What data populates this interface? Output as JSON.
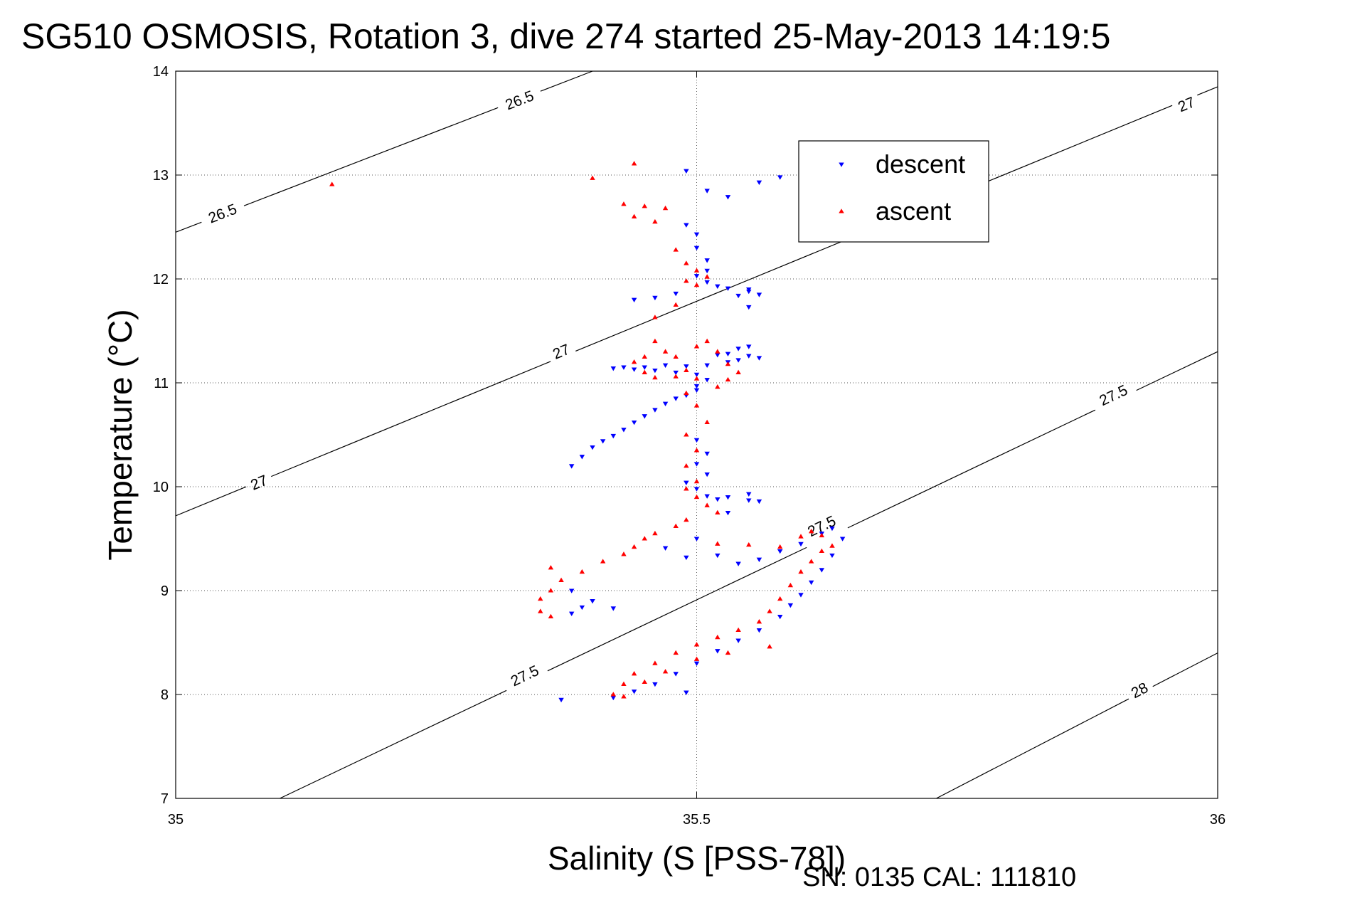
{
  "chart_data": {
    "type": "scatter",
    "title": "SG510 OSMOSIS, Rotation 3, dive 274 started 25-May-2013 14:19:5",
    "xlabel": "Salinity (S [PSS-78])",
    "ylabel": "Temperature (°C)",
    "footer": "SN: 0135  CAL: 111810",
    "xlim": [
      35,
      36
    ],
    "ylim": [
      7,
      14
    ],
    "x_ticks": [
      "35",
      "35.5",
      "36"
    ],
    "y_ticks": [
      "7",
      "8",
      "9",
      "10",
      "11",
      "12",
      "13",
      "14"
    ],
    "grid": true,
    "legend_position": "top-right",
    "series": [
      {
        "name": "descent",
        "color": "#0000ff",
        "marker": "triangle-down",
        "points": [
          [
            35.49,
            13.04
          ],
          [
            35.51,
            12.85
          ],
          [
            35.53,
            12.79
          ],
          [
            35.56,
            12.93
          ],
          [
            35.58,
            12.98
          ],
          [
            35.49,
            12.52
          ],
          [
            35.5,
            12.43
          ],
          [
            35.5,
            12.3
          ],
          [
            35.51,
            12.18
          ],
          [
            35.51,
            12.08
          ],
          [
            35.5,
            12.03
          ],
          [
            35.51,
            11.97
          ],
          [
            35.52,
            11.93
          ],
          [
            35.53,
            11.91
          ],
          [
            35.55,
            11.88
          ],
          [
            35.54,
            11.84
          ],
          [
            35.56,
            11.85
          ],
          [
            35.55,
            11.73
          ],
          [
            35.48,
            11.86
          ],
          [
            35.46,
            11.82
          ],
          [
            35.44,
            11.8
          ],
          [
            35.55,
            11.35
          ],
          [
            35.54,
            11.33
          ],
          [
            35.53,
            11.28
          ],
          [
            35.52,
            11.27
          ],
          [
            35.54,
            11.22
          ],
          [
            35.55,
            11.26
          ],
          [
            35.56,
            11.24
          ],
          [
            35.53,
            11.2
          ],
          [
            35.51,
            11.17
          ],
          [
            35.49,
            11.16
          ],
          [
            35.47,
            11.17
          ],
          [
            35.45,
            11.15
          ],
          [
            35.43,
            11.15
          ],
          [
            35.42,
            11.14
          ],
          [
            35.44,
            11.13
          ],
          [
            35.46,
            11.12
          ],
          [
            35.48,
            11.1
          ],
          [
            35.5,
            11.08
          ],
          [
            35.51,
            11.03
          ],
          [
            35.5,
            10.97
          ],
          [
            35.5,
            10.93
          ],
          [
            35.49,
            10.88
          ],
          [
            35.48,
            10.85
          ],
          [
            35.47,
            10.8
          ],
          [
            35.46,
            10.74
          ],
          [
            35.45,
            10.68
          ],
          [
            35.44,
            10.62
          ],
          [
            35.43,
            10.55
          ],
          [
            35.42,
            10.49
          ],
          [
            35.41,
            10.44
          ],
          [
            35.4,
            10.38
          ],
          [
            35.39,
            10.29
          ],
          [
            35.38,
            10.2
          ],
          [
            35.5,
            10.45
          ],
          [
            35.51,
            10.32
          ],
          [
            35.5,
            10.22
          ],
          [
            35.51,
            10.12
          ],
          [
            35.49,
            10.04
          ],
          [
            35.5,
            9.98
          ],
          [
            35.51,
            9.91
          ],
          [
            35.52,
            9.88
          ],
          [
            35.53,
            9.9
          ],
          [
            35.55,
            9.87
          ],
          [
            35.56,
            9.86
          ],
          [
            35.55,
            9.93
          ],
          [
            35.47,
            9.41
          ],
          [
            35.49,
            9.32
          ],
          [
            35.52,
            9.34
          ],
          [
            35.54,
            9.26
          ],
          [
            35.56,
            9.3
          ],
          [
            35.58,
            9.38
          ],
          [
            35.6,
            9.45
          ],
          [
            35.62,
            9.55
          ],
          [
            35.63,
            9.6
          ],
          [
            35.64,
            9.5
          ],
          [
            35.63,
            9.34
          ],
          [
            35.62,
            9.2
          ],
          [
            35.61,
            9.08
          ],
          [
            35.6,
            8.96
          ],
          [
            35.59,
            8.86
          ],
          [
            35.58,
            8.75
          ],
          [
            35.56,
            8.62
          ],
          [
            35.54,
            8.52
          ],
          [
            35.52,
            8.42
          ],
          [
            35.5,
            8.3
          ],
          [
            35.48,
            8.2
          ],
          [
            35.46,
            8.1
          ],
          [
            35.44,
            8.03
          ],
          [
            35.42,
            7.97
          ],
          [
            35.49,
            8.02
          ],
          [
            35.38,
            8.78
          ],
          [
            35.39,
            8.84
          ],
          [
            35.4,
            8.9
          ],
          [
            35.42,
            8.83
          ],
          [
            35.38,
            9.0
          ],
          [
            35.37,
            7.95
          ],
          [
            35.5,
            9.5
          ],
          [
            35.53,
            9.75
          ],
          [
            35.55,
            11.9
          ]
        ]
      },
      {
        "name": "ascent",
        "color": "#ff0000",
        "marker": "triangle-up",
        "points": [
          [
            35.15,
            12.91
          ],
          [
            35.4,
            12.97
          ],
          [
            35.44,
            13.11
          ],
          [
            35.43,
            12.72
          ],
          [
            35.45,
            12.7
          ],
          [
            35.47,
            12.68
          ],
          [
            35.44,
            12.6
          ],
          [
            35.46,
            12.55
          ],
          [
            35.48,
            12.28
          ],
          [
            35.49,
            12.15
          ],
          [
            35.5,
            12.08
          ],
          [
            35.51,
            12.02
          ],
          [
            35.49,
            11.98
          ],
          [
            35.5,
            11.94
          ],
          [
            35.48,
            11.75
          ],
          [
            35.46,
            11.63
          ],
          [
            35.46,
            11.4
          ],
          [
            35.47,
            11.3
          ],
          [
            35.48,
            11.25
          ],
          [
            35.5,
            11.35
          ],
          [
            35.51,
            11.4
          ],
          [
            35.52,
            11.3
          ],
          [
            35.53,
            11.18
          ],
          [
            35.54,
            11.1
          ],
          [
            35.53,
            11.03
          ],
          [
            35.52,
            10.96
          ],
          [
            35.45,
            11.25
          ],
          [
            35.44,
            11.2
          ],
          [
            35.45,
            11.1
          ],
          [
            35.46,
            11.05
          ],
          [
            35.48,
            11.06
          ],
          [
            35.49,
            11.12
          ],
          [
            35.5,
            11.04
          ],
          [
            35.49,
            10.9
          ],
          [
            35.5,
            10.78
          ],
          [
            35.51,
            10.62
          ],
          [
            35.49,
            10.5
          ],
          [
            35.5,
            10.35
          ],
          [
            35.49,
            10.2
          ],
          [
            35.5,
            10.05
          ],
          [
            35.49,
            9.98
          ],
          [
            35.5,
            9.9
          ],
          [
            35.51,
            9.82
          ],
          [
            35.52,
            9.75
          ],
          [
            35.49,
            9.68
          ],
          [
            35.48,
            9.62
          ],
          [
            35.46,
            9.55
          ],
          [
            35.45,
            9.5
          ],
          [
            35.44,
            9.42
          ],
          [
            35.43,
            9.35
          ],
          [
            35.41,
            9.28
          ],
          [
            35.39,
            9.18
          ],
          [
            35.37,
            9.1
          ],
          [
            35.36,
            9.0
          ],
          [
            35.35,
            8.92
          ],
          [
            35.35,
            8.8
          ],
          [
            35.36,
            8.75
          ],
          [
            35.36,
            9.22
          ],
          [
            35.52,
            9.45
          ],
          [
            35.55,
            9.44
          ],
          [
            35.58,
            9.42
          ],
          [
            35.6,
            9.52
          ],
          [
            35.61,
            9.57
          ],
          [
            35.62,
            9.53
          ],
          [
            35.63,
            9.43
          ],
          [
            35.62,
            9.38
          ],
          [
            35.61,
            9.28
          ],
          [
            35.6,
            9.18
          ],
          [
            35.59,
            9.05
          ],
          [
            35.58,
            8.92
          ],
          [
            35.57,
            8.8
          ],
          [
            35.56,
            8.7
          ],
          [
            35.54,
            8.62
          ],
          [
            35.52,
            8.55
          ],
          [
            35.5,
            8.48
          ],
          [
            35.48,
            8.4
          ],
          [
            35.46,
            8.3
          ],
          [
            35.44,
            8.2
          ],
          [
            35.43,
            8.1
          ],
          [
            35.42,
            8.0
          ],
          [
            35.43,
            7.98
          ],
          [
            35.45,
            8.12
          ],
          [
            35.47,
            8.22
          ],
          [
            35.5,
            8.34
          ],
          [
            35.53,
            8.4
          ],
          [
            35.57,
            8.46
          ]
        ]
      }
    ],
    "isopycnals": [
      {
        "label": "26.5",
        "line": [
          [
            35.0,
            12.45
          ],
          [
            35.4,
            14.0
          ]
        ],
        "labels_at": [
          [
            35.33,
            13.72
          ],
          [
            35.045,
            12.63
          ]
        ]
      },
      {
        "label": "27",
        "line": [
          [
            35.0,
            9.72
          ],
          [
            36.0,
            13.85
          ]
        ],
        "labels_at": [
          [
            35.37,
            11.3
          ],
          [
            35.08,
            10.04
          ],
          [
            35.97,
            13.68
          ]
        ]
      },
      {
        "label": "27.5",
        "line": [
          [
            35.1,
            7.0
          ],
          [
            36.0,
            11.3
          ]
        ],
        "labels_at": [
          [
            35.335,
            8.18
          ],
          [
            35.62,
            9.62
          ],
          [
            35.9,
            10.88
          ]
        ]
      },
      {
        "label": "28",
        "line": [
          [
            35.73,
            7.0
          ],
          [
            36.0,
            8.4
          ]
        ],
        "labels_at": [
          [
            35.925,
            8.04
          ]
        ]
      }
    ]
  }
}
